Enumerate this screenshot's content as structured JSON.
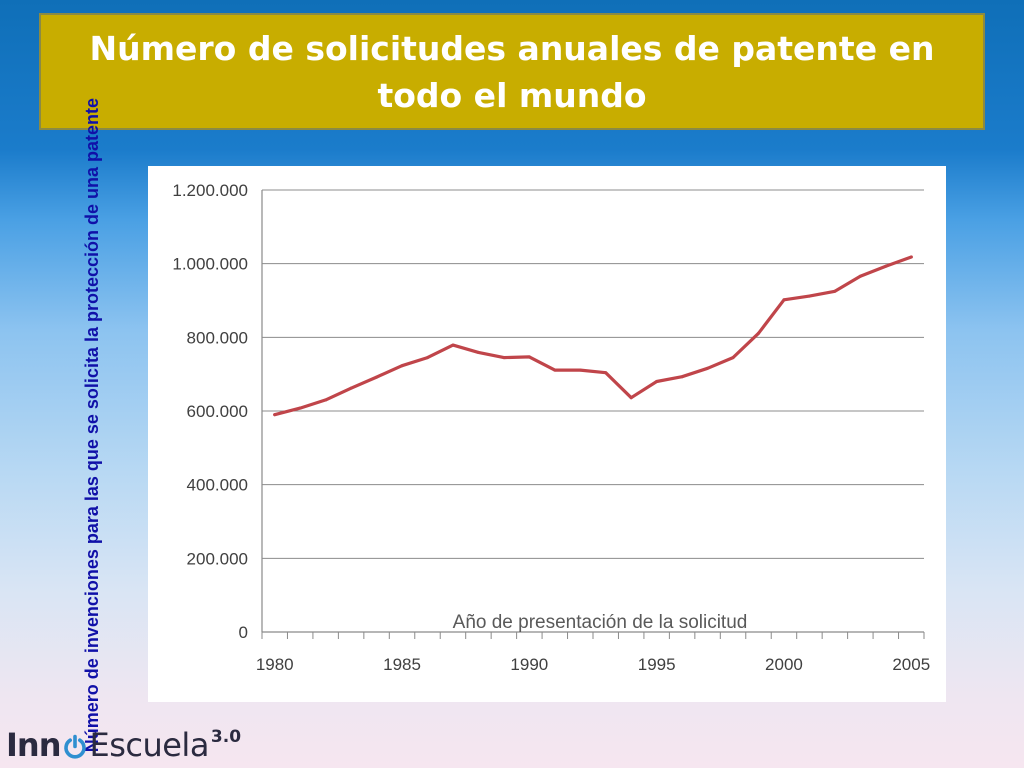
{
  "slide": {
    "title": "Número de solicitudes anuales de patente en todo el mundo",
    "y_axis_title": "Número de invenciones para las que se solicita la protección de una patente"
  },
  "logo": {
    "part1": "Inn",
    "icon": "power-icon",
    "part2": "Escuela",
    "version": "3.0"
  },
  "colors": {
    "title_bg": "#c8ad00",
    "line": "#c0454a",
    "y_title": "#1010a8"
  },
  "chart_data": {
    "type": "line",
    "title": "",
    "xlabel": "Año de presentación de la solicitud",
    "ylabel": "Número de invenciones para las que se solicita la protección de una patente",
    "ylim": [
      0,
      1200000
    ],
    "xlim": [
      1980,
      2005
    ],
    "x_ticks": [
      "1980",
      "1985",
      "1990",
      "1995",
      "2000",
      "2005"
    ],
    "y_ticks": [
      "0",
      "200.000",
      "400.000",
      "600.000",
      "800.000",
      "1.000.000",
      "1.200.000"
    ],
    "y_tick_values": [
      0,
      200000,
      400000,
      600000,
      800000,
      1000000,
      1200000
    ],
    "x_tick_values": [
      1980,
      1985,
      1990,
      1995,
      2000,
      2005
    ],
    "grid": "horizontal",
    "series": [
      {
        "color": "#c0454a",
        "x": [
          1980,
          1981,
          1982,
          1983,
          1984,
          1985,
          1986,
          1987,
          1988,
          1989,
          1990,
          1991,
          1992,
          1993,
          1994,
          1995,
          1996,
          1997,
          1998,
          1999,
          2000,
          2001,
          2002,
          2003,
          2004,
          2005
        ],
        "values": [
          590000,
          608000,
          630000,
          662000,
          692000,
          723000,
          745000,
          779000,
          759000,
          745000,
          747000,
          711000,
          711000,
          704000,
          636000,
          680000,
          693000,
          716000,
          745000,
          811000,
          902000,
          912000,
          925000,
          966000,
          993000,
          1018000
        ]
      }
    ]
  }
}
